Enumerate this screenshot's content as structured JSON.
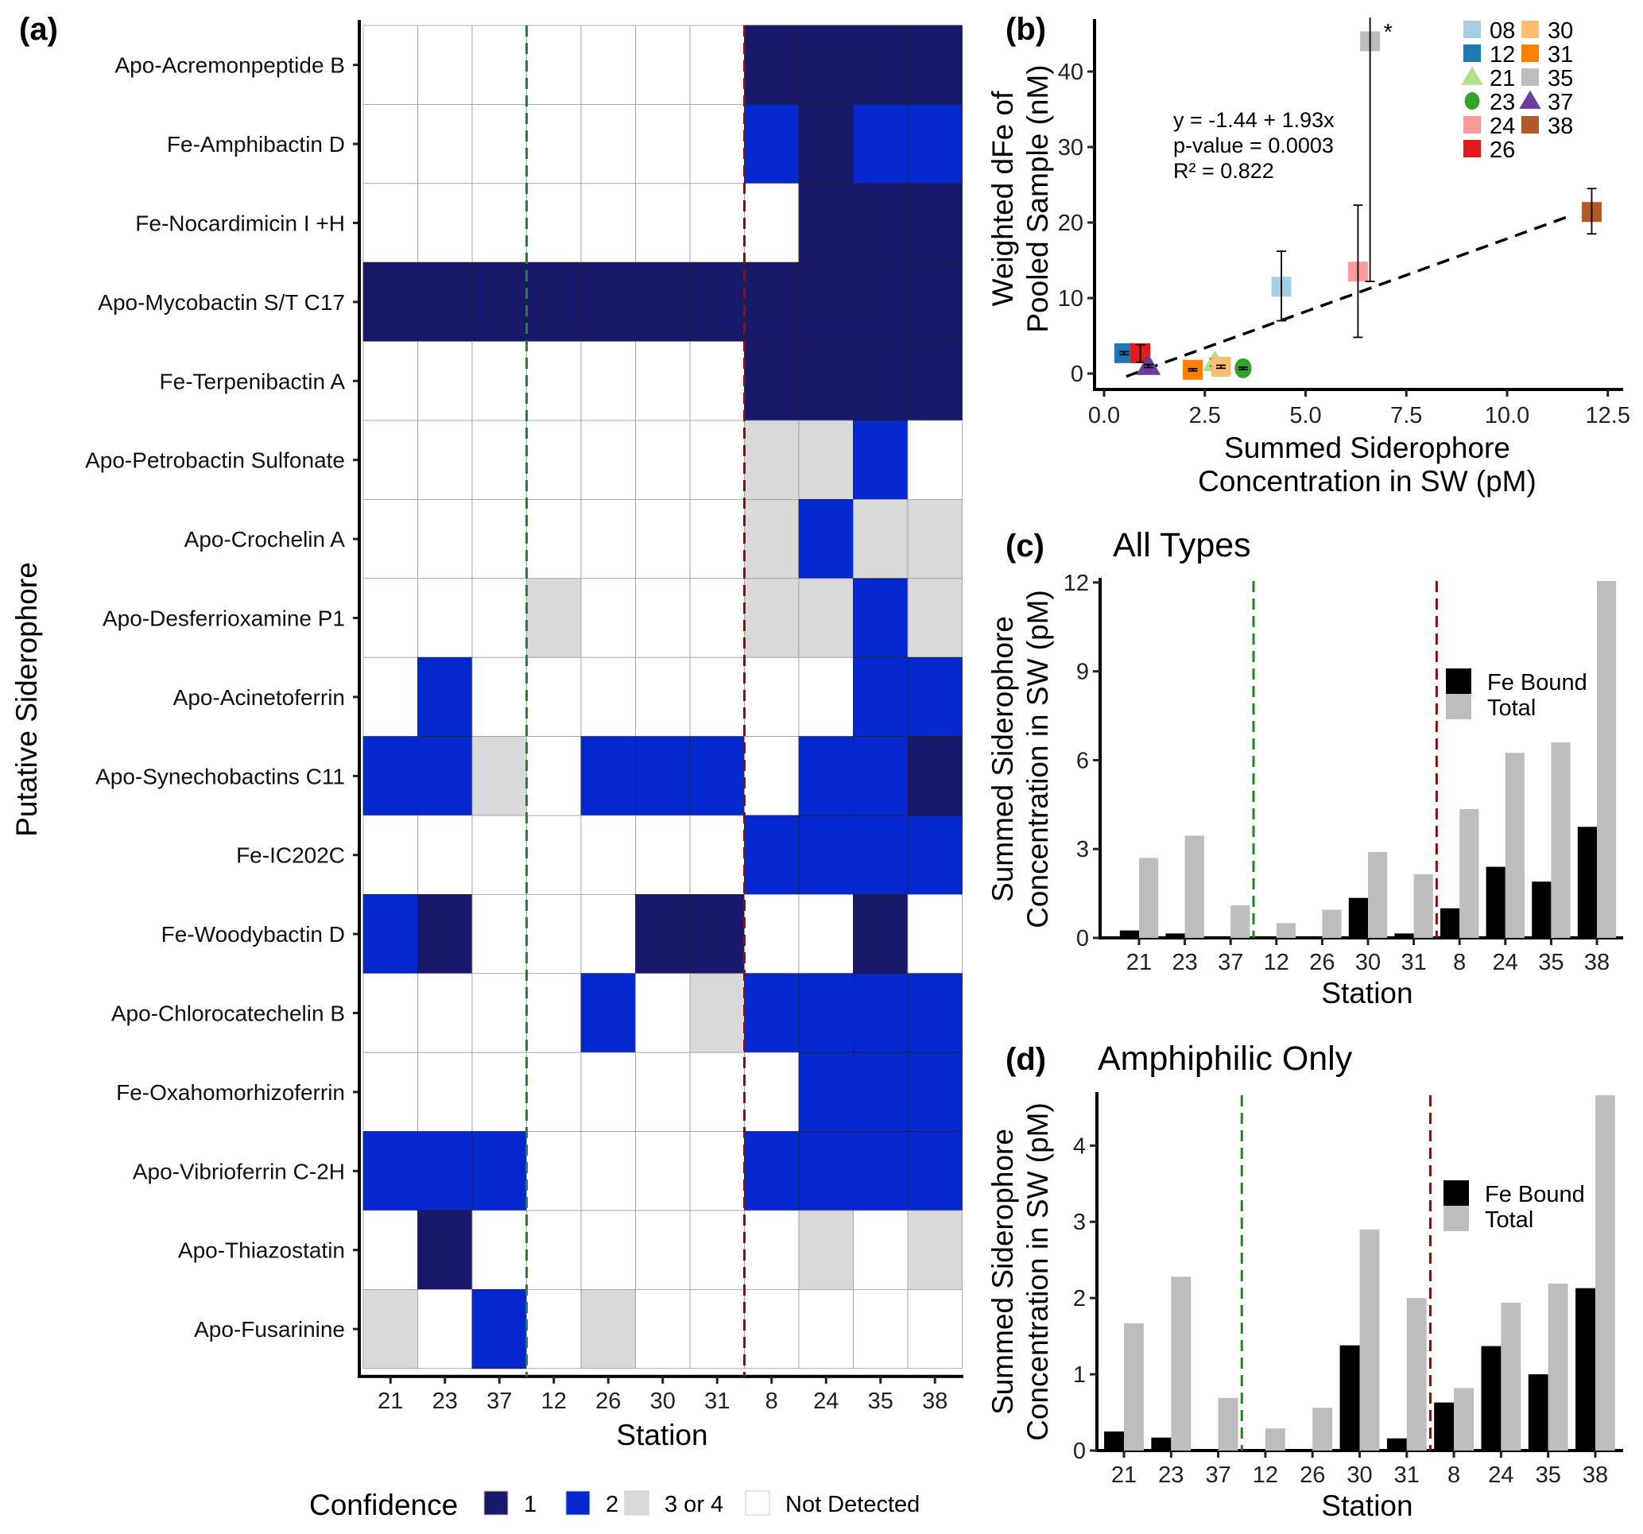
{
  "colors": {
    "conf1": "#19196b",
    "conf2": "#0328d0",
    "conf34": "#d9d9d9",
    "none": "#ffffff",
    "fe_bound": "#000000",
    "total": "#bdbdbd",
    "green_line": "#1a8a1a",
    "red_line": "#8b0f0f"
  },
  "chart_data": [
    {
      "panel": "(a)",
      "type": "heatmap",
      "xlabel": "Station",
      "ylabel": "Putative Siderophore",
      "stations": [
        "21",
        "23",
        "37",
        "12",
        "26",
        "30",
        "31",
        "8",
        "24",
        "35",
        "38"
      ],
      "siderophores": [
        "Apo-Acremonpeptide B",
        "Fe-Amphibactin D",
        "Fe-Nocardimicin I +H",
        "Apo-Mycobactin S/T C17",
        "Fe-Terpenibactin A",
        "Apo-Petrobactin Sulfonate",
        "Apo-Crochelin A",
        "Apo-Desferrioxamine P1",
        "Apo-Acinetoferrin",
        "Apo-Synechobactins C11",
        "Fe-IC202C",
        "Fe-Woodybactin D",
        "Apo-Chlorocatechelin B",
        "Fe-Oxahomorhizoferrin",
        "Apo-Vibrioferrin C-2H",
        "Apo-Thiazostatin",
        "Apo-Fusarinine"
      ],
      "confidence_codes": "0 = Not Detected, 1 = 1, 2 = 2, 3 = 3 or 4",
      "values": [
        [
          0,
          0,
          0,
          0,
          0,
          0,
          0,
          1,
          1,
          1,
          1
        ],
        [
          0,
          0,
          0,
          0,
          0,
          0,
          0,
          2,
          1,
          2,
          2
        ],
        [
          0,
          0,
          0,
          0,
          0,
          0,
          0,
          0,
          1,
          1,
          1
        ],
        [
          1,
          1,
          1,
          1,
          1,
          1,
          1,
          1,
          1,
          1,
          1
        ],
        [
          0,
          0,
          0,
          0,
          0,
          0,
          0,
          1,
          1,
          1,
          1
        ],
        [
          0,
          0,
          0,
          0,
          0,
          0,
          0,
          3,
          3,
          2,
          0
        ],
        [
          0,
          0,
          0,
          0,
          0,
          0,
          0,
          3,
          2,
          3,
          3
        ],
        [
          0,
          0,
          0,
          3,
          0,
          0,
          0,
          3,
          3,
          2,
          3
        ],
        [
          0,
          2,
          0,
          0,
          0,
          0,
          0,
          0,
          0,
          2,
          2
        ],
        [
          2,
          2,
          3,
          0,
          2,
          2,
          2,
          0,
          2,
          2,
          1
        ],
        [
          0,
          0,
          0,
          0,
          0,
          0,
          0,
          2,
          2,
          2,
          2
        ],
        [
          2,
          1,
          0,
          0,
          0,
          1,
          1,
          0,
          0,
          1,
          0
        ],
        [
          0,
          0,
          0,
          0,
          2,
          0,
          3,
          2,
          2,
          2,
          2
        ],
        [
          0,
          0,
          0,
          0,
          0,
          0,
          0,
          0,
          2,
          2,
          2
        ],
        [
          2,
          2,
          2,
          0,
          0,
          0,
          0,
          2,
          2,
          2,
          2
        ],
        [
          0,
          1,
          0,
          0,
          0,
          0,
          0,
          0,
          3,
          0,
          3
        ],
        [
          3,
          0,
          2,
          0,
          3,
          0,
          0,
          0,
          0,
          0,
          0
        ]
      ],
      "vlines_after_station": [
        "37",
        "31"
      ],
      "legend": {
        "title": "Confidence",
        "entries": [
          "1",
          "2",
          "3 or 4",
          "Not Detected"
        ],
        "placement": "bottom"
      }
    },
    {
      "panel": "(b)",
      "type": "scatter",
      "xlabel": [
        "Summed Siderophore",
        "Concentration in SW (pM)"
      ],
      "ylabel": [
        "Weighted dFe of",
        "Pooled Sample (nM)"
      ],
      "xlim": [
        0,
        12.9
      ],
      "ylim": [
        -2.5,
        47.5
      ],
      "xticks": [
        "0.0",
        "2.5",
        "5.0",
        "7.5",
        "10.0",
        "12.5"
      ],
      "yticks": [
        "0",
        "10",
        "20",
        "30",
        "40"
      ],
      "points": [
        {
          "station": "08",
          "x": 4.4,
          "y": 11.5,
          "lo": 7.0,
          "hi": 16.2,
          "color": "#a6cee3",
          "shape": "square"
        },
        {
          "station": "12",
          "x": 0.5,
          "y": 2.7,
          "lo": 2.5,
          "hi": 2.9,
          "color": "#1f78b4",
          "shape": "square"
        },
        {
          "station": "21",
          "x": 2.75,
          "y": 1.5,
          "lo": 1.0,
          "hi": 2.0,
          "color": "#b2df8a",
          "shape": "triangle"
        },
        {
          "station": "23",
          "x": 3.45,
          "y": 0.7,
          "lo": 0.55,
          "hi": 0.85,
          "color": "#33a02c",
          "shape": "circle"
        },
        {
          "station": "24",
          "x": 6.3,
          "y": 13.5,
          "lo": 4.8,
          "hi": 22.3,
          "color": "#fb9a99",
          "shape": "square"
        },
        {
          "station": "26",
          "x": 0.9,
          "y": 2.7,
          "lo": 1.5,
          "hi": 3.8,
          "color": "#e31a1c",
          "shape": "square"
        },
        {
          "station": "30",
          "x": 2.9,
          "y": 0.9,
          "lo": 0.7,
          "hi": 1.1,
          "color": "#fdbf6f",
          "shape": "square"
        },
        {
          "station": "31",
          "x": 2.2,
          "y": 0.5,
          "lo": 0.35,
          "hi": 0.65,
          "color": "#ff7f00",
          "shape": "square"
        },
        {
          "station": "35",
          "x": 6.6,
          "y": 44.0,
          "lo": 12.2,
          "hi": 47.5,
          "color": "#bdbdbd",
          "shape": "square",
          "note": "*"
        },
        {
          "station": "37",
          "x": 1.1,
          "y": 1.0,
          "lo": 0.8,
          "hi": 1.2,
          "color": "#6a3d9a",
          "shape": "triangle"
        },
        {
          "station": "38",
          "x": 12.1,
          "y": 21.4,
          "lo": 18.5,
          "hi": 24.5,
          "color": "#b15928",
          "shape": "square"
        }
      ],
      "fit": {
        "intercept": -1.44,
        "slope": 1.93,
        "x_range": [
          0.55,
          11.6
        ]
      },
      "annotations": [
        "y = -1.44 + 1.93x",
        "p-value = 0.0003",
        "R² = 0.822"
      ],
      "legend_placement": "top-right"
    },
    {
      "panel": "(c)",
      "type": "bar",
      "title": "All Types",
      "xlabel": "Station",
      "ylabel": [
        "Summed Siderophore",
        "Concentration in SW (pM)"
      ],
      "ylim": [
        0,
        12.05
      ],
      "yticks": [
        "0",
        "3",
        "6",
        "9",
        "12"
      ],
      "categories": [
        "21",
        "23",
        "37",
        "12",
        "26",
        "30",
        "31",
        "8",
        "24",
        "35",
        "38"
      ],
      "series": [
        {
          "name": "Fe Bound",
          "values": [
            0.25,
            0.15,
            0,
            0,
            0,
            1.35,
            0.15,
            1.0,
            2.4,
            1.9,
            3.75
          ]
        },
        {
          "name": "Total",
          "values": [
            2.7,
            3.45,
            1.1,
            0.5,
            0.95,
            2.9,
            2.15,
            4.35,
            6.25,
            6.6,
            12.05
          ]
        }
      ],
      "vlines_after_category": [
        "37",
        "31"
      ],
      "legend_placement": "right"
    },
    {
      "panel": "(d)",
      "type": "bar",
      "title": "Amphiphilic Only",
      "xlabel": "Station",
      "ylabel": [
        "Summed Siderophore",
        "Concentration in SW (pM)"
      ],
      "ylim": [
        0,
        4.66
      ],
      "yticks": [
        "0",
        "1",
        "2",
        "3",
        "4"
      ],
      "categories": [
        "21",
        "23",
        "37",
        "12",
        "26",
        "30",
        "31",
        "8",
        "24",
        "35",
        "38"
      ],
      "series": [
        {
          "name": "Fe Bound",
          "values": [
            0.25,
            0.17,
            0,
            0,
            0,
            1.38,
            0.16,
            0.63,
            1.37,
            1.0,
            2.13
          ]
        },
        {
          "name": "Total",
          "values": [
            1.67,
            2.28,
            0.69,
            0.29,
            0.56,
            2.9,
            2.0,
            0.82,
            1.94,
            2.19,
            4.66
          ]
        }
      ],
      "vlines_after_category": [
        "37",
        "31"
      ],
      "legend_placement": "right"
    }
  ]
}
